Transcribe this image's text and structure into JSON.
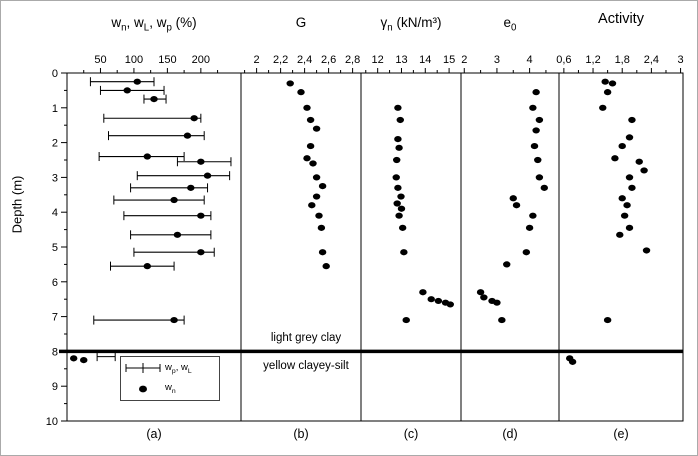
{
  "figure": {
    "depth_axis": {
      "label": "Depth (m)",
      "min": 0,
      "max": 10,
      "tick_labels": [
        "0",
        "1",
        "2",
        "3",
        "4",
        "5",
        "6",
        "7",
        "8",
        "9",
        "10"
      ]
    },
    "layer_boundary_depth": 8,
    "layers": {
      "upper": "light grey clay",
      "lower": "yellow clayey-silt"
    },
    "legend": {
      "entries": [
        {
          "symbol": "range-bar",
          "label_parts": [
            [
              "w",
              "p"
            ],
            [
              ", w",
              "L"
            ]
          ]
        },
        {
          "symbol": "dot",
          "label_parts": [
            [
              "w",
              "n"
            ]
          ]
        }
      ]
    },
    "panel_letters": [
      "(a)",
      "(b)",
      "(c)",
      "(d)",
      "(e)"
    ]
  },
  "chart_data": [
    {
      "id": "a",
      "type": "scatter",
      "title_parts": [
        [
          "w",
          "n"
        ],
        [
          ", w",
          "L"
        ],
        [
          ", w",
          "p"
        ],
        [
          " (%)",
          ""
        ]
      ],
      "xmin": 0,
      "xmax": 260,
      "ticks": [
        {
          "v": 50,
          "label": "50"
        },
        {
          "v": 100,
          "label": "100"
        },
        {
          "v": 150,
          "label": "150"
        },
        {
          "v": 200,
          "label": "200"
        }
      ],
      "bars": [
        [
          0.25,
          35,
          130
        ],
        [
          0.5,
          50,
          145
        ],
        [
          0.75,
          115,
          148
        ],
        [
          1.3,
          55,
          200
        ],
        [
          1.8,
          62,
          205
        ],
        [
          2.4,
          48,
          175
        ],
        [
          2.55,
          165,
          245
        ],
        [
          2.95,
          105,
          243
        ],
        [
          3.3,
          95,
          210
        ],
        [
          3.65,
          70,
          205
        ],
        [
          4.1,
          85,
          215
        ],
        [
          4.65,
          95,
          215
        ],
        [
          5.15,
          100,
          220
        ],
        [
          5.55,
          65,
          160
        ],
        [
          7.1,
          40,
          175
        ],
        [
          8.15,
          45,
          72
        ]
      ],
      "points": [
        [
          0.25,
          105
        ],
        [
          0.5,
          90
        ],
        [
          0.75,
          130
        ],
        [
          1.3,
          190
        ],
        [
          1.8,
          180
        ],
        [
          2.4,
          120
        ],
        [
          2.55,
          200
        ],
        [
          2.95,
          210
        ],
        [
          3.3,
          185
        ],
        [
          3.65,
          160
        ],
        [
          4.1,
          200
        ],
        [
          4.65,
          165
        ],
        [
          5.15,
          200
        ],
        [
          5.55,
          120
        ],
        [
          7.1,
          160
        ],
        [
          8.2,
          10
        ],
        [
          8.25,
          25
        ]
      ]
    },
    {
      "id": "b",
      "type": "scatter",
      "title_parts": [
        [
          "G",
          ""
        ]
      ],
      "xmin": 1.87,
      "xmax": 2.87,
      "ticks": [
        {
          "v": 2,
          "label": "2"
        },
        {
          "v": 2.2,
          "label": "2,2"
        },
        {
          "v": 2.4,
          "label": "2,4"
        },
        {
          "v": 2.6,
          "label": "2,6"
        },
        {
          "v": 2.8,
          "label": "2,8"
        }
      ],
      "points": [
        [
          0.3,
          2.28
        ],
        [
          0.55,
          2.37
        ],
        [
          1.0,
          2.42
        ],
        [
          1.35,
          2.45
        ],
        [
          1.6,
          2.5
        ],
        [
          2.1,
          2.45
        ],
        [
          2.45,
          2.42
        ],
        [
          2.6,
          2.47
        ],
        [
          3.0,
          2.5
        ],
        [
          3.25,
          2.55
        ],
        [
          3.55,
          2.5
        ],
        [
          3.8,
          2.46
        ],
        [
          4.1,
          2.52
        ],
        [
          4.45,
          2.54
        ],
        [
          5.15,
          2.55
        ],
        [
          5.55,
          2.58
        ]
      ]
    },
    {
      "id": "c",
      "type": "scatter",
      "title_parts": [
        [
          "γ",
          "n"
        ],
        [
          " (kN/m³)",
          ""
        ]
      ],
      "xmin": 11.3,
      "xmax": 15.5,
      "ticks": [
        {
          "v": 12,
          "label": "12"
        },
        {
          "v": 13,
          "label": "13"
        },
        {
          "v": 14,
          "label": "14"
        },
        {
          "v": 15,
          "label": "15"
        }
      ],
      "points": [
        [
          1.0,
          12.85
        ],
        [
          1.35,
          12.95
        ],
        [
          1.9,
          12.85
        ],
        [
          2.15,
          12.9
        ],
        [
          2.5,
          12.8
        ],
        [
          3.0,
          12.78
        ],
        [
          3.3,
          12.85
        ],
        [
          3.55,
          12.98
        ],
        [
          3.75,
          12.82
        ],
        [
          3.9,
          13.0
        ],
        [
          4.1,
          12.9
        ],
        [
          4.45,
          13.05
        ],
        [
          5.15,
          13.1
        ],
        [
          6.3,
          13.9
        ],
        [
          6.5,
          14.25
        ],
        [
          6.55,
          14.55
        ],
        [
          6.6,
          14.85
        ],
        [
          6.65,
          15.05
        ],
        [
          7.1,
          13.2
        ]
      ]
    },
    {
      "id": "d",
      "type": "scatter",
      "title_parts": [
        [
          "e",
          "0"
        ]
      ],
      "xmin": 1.9,
      "xmax": 4.9,
      "ticks": [
        {
          "v": 2,
          "label": "2"
        },
        {
          "v": 3,
          "label": "3"
        },
        {
          "v": 4,
          "label": "4"
        }
      ],
      "points": [
        [
          0.55,
          4.2
        ],
        [
          1.0,
          4.1
        ],
        [
          1.35,
          4.3
        ],
        [
          1.65,
          4.2
        ],
        [
          2.1,
          4.15
        ],
        [
          2.5,
          4.25
        ],
        [
          3.0,
          4.3
        ],
        [
          3.3,
          4.45
        ],
        [
          3.6,
          3.5
        ],
        [
          3.8,
          3.6
        ],
        [
          4.1,
          4.1
        ],
        [
          4.45,
          4.0
        ],
        [
          5.15,
          3.9
        ],
        [
          5.5,
          3.3
        ],
        [
          6.3,
          2.5
        ],
        [
          6.45,
          2.6
        ],
        [
          6.55,
          2.85
        ],
        [
          6.6,
          3.0
        ],
        [
          7.1,
          3.15
        ]
      ]
    },
    {
      "id": "e",
      "type": "scatter",
      "title_parts": [
        [
          "Activity",
          ""
        ]
      ],
      "xmin": 0.5,
      "xmax": 3.05,
      "ticks": [
        {
          "v": 0.6,
          "label": "0,6"
        },
        {
          "v": 1.2,
          "label": "1,2"
        },
        {
          "v": 1.8,
          "label": "1,8"
        },
        {
          "v": 2.4,
          "label": "2,4"
        },
        {
          "v": 3,
          "label": "3"
        }
      ],
      "points": [
        [
          0.25,
          1.45
        ],
        [
          0.3,
          1.6
        ],
        [
          0.55,
          1.5
        ],
        [
          1.0,
          1.4
        ],
        [
          1.35,
          2.0
        ],
        [
          1.85,
          1.95
        ],
        [
          2.1,
          1.8
        ],
        [
          2.45,
          1.65
        ],
        [
          2.55,
          2.15
        ],
        [
          2.8,
          2.25
        ],
        [
          3.0,
          1.95
        ],
        [
          3.3,
          2.0
        ],
        [
          3.6,
          1.8
        ],
        [
          3.8,
          1.9
        ],
        [
          4.1,
          1.85
        ],
        [
          4.45,
          1.95
        ],
        [
          4.65,
          1.75
        ],
        [
          5.1,
          2.3
        ],
        [
          7.1,
          1.5
        ],
        [
          8.2,
          0.72
        ],
        [
          8.3,
          0.78
        ]
      ]
    }
  ]
}
